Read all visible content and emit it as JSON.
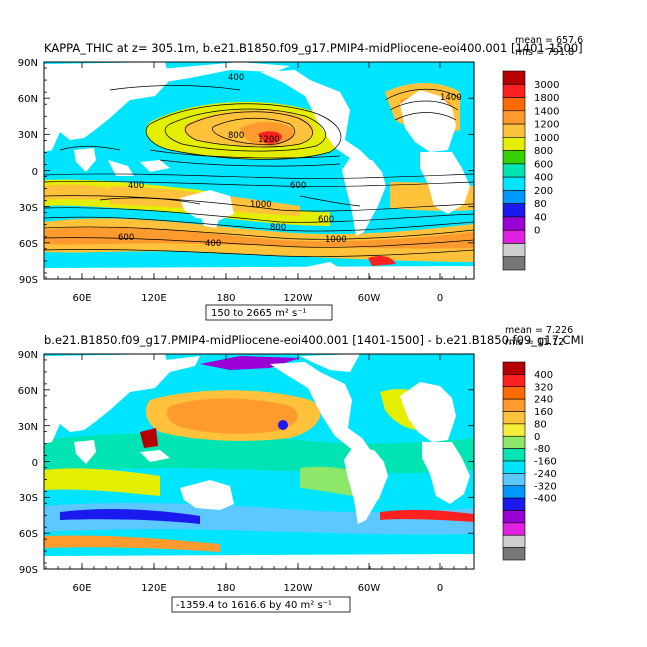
{
  "colors": {
    "ocean": "#00e5ff",
    "land": "#ffffff",
    "contour": "#000000",
    "frame": "#000000"
  },
  "lat_labels": [
    "90N",
    "60N",
    "30N",
    "0",
    "30S",
    "60S",
    "90S"
  ],
  "lon_labels": [
    "60E",
    "120E",
    "180",
    "120W",
    "60W",
    "0"
  ],
  "panel_top": {
    "title": "KAPPA_THIC at z=  305.1m, b.e21.B1850.f09_g17.PMIP4-midPliocene-eoi400.001 [1401-1500]",
    "stats_mean": "mean = 657.6",
    "stats_rms": "rms = 791.8",
    "range_label": "150 to 2665 m² s⁻¹",
    "contour_labels": [
      "400",
      "800",
      "1200",
      "400",
      "600",
      "1000",
      "600",
      "800",
      "1000",
      "600",
      "400",
      "1400"
    ],
    "colorbar": {
      "labels": [
        "3000",
        "1800",
        "1400",
        "1200",
        "1000",
        "800",
        "600",
        "400",
        "200",
        "80",
        "40",
        "0"
      ],
      "colors": [
        "#b40000",
        "#ff2020",
        "#ff6a00",
        "#ff9b2e",
        "#ffc23a",
        "#e3ee00",
        "#33d200",
        "#00e4b4",
        "#00e5ff",
        "#0098ff",
        "#1a1aee",
        "#9a00d6",
        "#e022e0",
        "#cfcfcf",
        "#777777"
      ]
    }
  },
  "panel_bottom": {
    "title": "b.e21.B1850.f09_g17.PMIP4-midPliocene-eoi400.001 [1401-1500] - b.e21.B1850.f09_g17.CMI",
    "stats_mean": "mean = 7.226",
    "stats_rms": "rms = 11.12",
    "range_label": "-1359.4 to 1616.6 by 40 m² s⁻¹",
    "colorbar": {
      "labels": [
        "400",
        "320",
        "240",
        "160",
        "80",
        "0",
        "-80",
        "-160",
        "-240",
        "-320",
        "-400"
      ],
      "colors": [
        "#b40000",
        "#ff2020",
        "#ff6a00",
        "#ff9b2e",
        "#ffc23a",
        "#f5ef3a",
        "#8de86a",
        "#00e4b4",
        "#00e5ff",
        "#5cc8ff",
        "#0098ff",
        "#1a1aee",
        "#9a00d6",
        "#e022e0",
        "#cfcfcf",
        "#777777"
      ]
    }
  }
}
